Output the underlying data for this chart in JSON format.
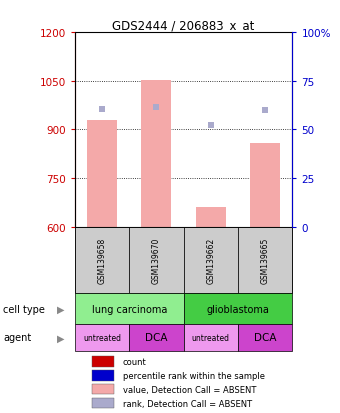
{
  "title": "GDS2444 / 206883_x_at",
  "samples": [
    "GSM139658",
    "GSM139670",
    "GSM139662",
    "GSM139665"
  ],
  "bar_values": [
    930,
    1052,
    660,
    858
  ],
  "rank_values": [
    962,
    968,
    912,
    960
  ],
  "ylim_left": [
    600,
    1200
  ],
  "ylim_right": [
    0,
    100
  ],
  "yticks_left": [
    600,
    750,
    900,
    1050,
    1200
  ],
  "yticks_right": [
    0,
    25,
    50,
    75,
    100
  ],
  "bar_color": "#f4a9a9",
  "rank_color": "#aaaacc",
  "cell_type_spans": [
    {
      "label": "lung carcinoma",
      "start": 0,
      "end": 2,
      "color": "#90ee90"
    },
    {
      "label": "glioblastoma",
      "start": 2,
      "end": 4,
      "color": "#44cc44"
    }
  ],
  "agents": [
    "untreated",
    "DCA",
    "untreated",
    "DCA"
  ],
  "agent_colors": [
    "#ee99ee",
    "#cc44cc",
    "#ee99ee",
    "#cc44cc"
  ],
  "legend_items": [
    {
      "label": "count",
      "color": "#cc0000"
    },
    {
      "label": "percentile rank within the sample",
      "color": "#0000cc"
    },
    {
      "label": "value, Detection Call = ABSENT",
      "color": "#f4a9a9"
    },
    {
      "label": "rank, Detection Call = ABSENT",
      "color": "#aaaacc"
    }
  ],
  "left_axis_color": "#cc0000",
  "right_axis_color": "#0000cc",
  "background_color": "#ffffff",
  "bar_width": 0.55,
  "gridline_ticks": [
    750,
    900,
    1050
  ],
  "sample_label_color": "#cccccc"
}
